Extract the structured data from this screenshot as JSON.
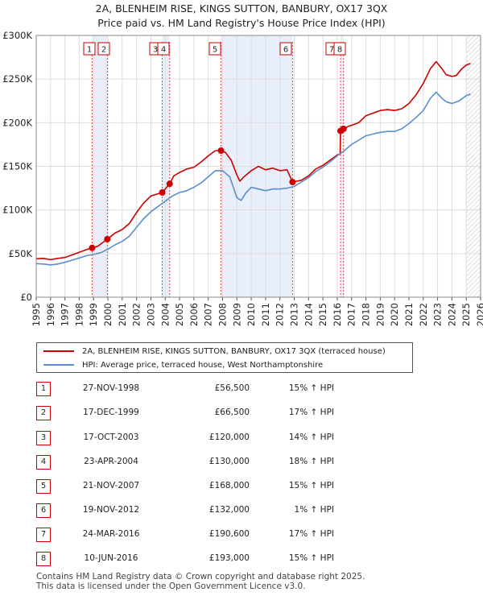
{
  "chart_data": {
    "type": "line",
    "title": "2A, BLENHEIM RISE, KINGS SUTTON, BANBURY, OX17 3QX",
    "subtitle": "Price paid vs. HM Land Registry's House Price Index (HPI)",
    "xlabel": "",
    "ylabel": "",
    "xlim": [
      1995,
      2026
    ],
    "ylim": [
      0,
      300000
    ],
    "y_ticks": [
      {
        "value": 0,
        "label": "£0"
      },
      {
        "value": 50000,
        "label": "£50K"
      },
      {
        "value": 100000,
        "label": "£100K"
      },
      {
        "value": 150000,
        "label": "£150K"
      },
      {
        "value": 200000,
        "label": "£200K"
      },
      {
        "value": 250000,
        "label": "£250K"
      },
      {
        "value": 300000,
        "label": "£300K"
      }
    ],
    "x_ticks": [
      "1995",
      "1996",
      "1997",
      "1998",
      "1999",
      "2000",
      "2001",
      "2002",
      "2003",
      "2004",
      "2005",
      "2006",
      "2007",
      "2008",
      "2009",
      "2010",
      "2011",
      "2012",
      "2013",
      "2014",
      "2015",
      "2016",
      "2017",
      "2018",
      "2019",
      "2020",
      "2021",
      "2022",
      "2023",
      "2024",
      "2025",
      "2026"
    ],
    "grid": true,
    "series": [
      {
        "name": "2A, BLENHEIM RISE, KINGS SUTTON, BANBURY, OX17 3QX (terraced house)",
        "color": "#cc0000",
        "points": [
          [
            1995.0,
            44000
          ],
          [
            1995.5,
            44500
          ],
          [
            1996.0,
            43000
          ],
          [
            1996.5,
            44500
          ],
          [
            1997.0,
            45500
          ],
          [
            1997.5,
            48500
          ],
          [
            1998.0,
            51500
          ],
          [
            1998.5,
            54500
          ],
          [
            1998.9,
            56500
          ],
          [
            1999.3,
            58500
          ],
          [
            1999.96,
            66500
          ],
          [
            2000.5,
            73500
          ],
          [
            2001.0,
            77500
          ],
          [
            2001.5,
            84500
          ],
          [
            2002.0,
            97000
          ],
          [
            2002.5,
            108000
          ],
          [
            2003.0,
            116000
          ],
          [
            2003.79,
            120000
          ],
          [
            2004.31,
            130000
          ],
          [
            2004.6,
            139000
          ],
          [
            2005.0,
            143000
          ],
          [
            2005.5,
            147000
          ],
          [
            2006.0,
            149000
          ],
          [
            2006.5,
            155000
          ],
          [
            2007.0,
            162000
          ],
          [
            2007.5,
            168000
          ],
          [
            2007.89,
            168000
          ],
          [
            2008.2,
            166000
          ],
          [
            2008.6,
            157000
          ],
          [
            2009.0,
            140000
          ],
          [
            2009.2,
            133000
          ],
          [
            2009.5,
            138000
          ],
          [
            2010.0,
            145000
          ],
          [
            2010.5,
            150000
          ],
          [
            2011.0,
            146000
          ],
          [
            2011.5,
            148000
          ],
          [
            2012.0,
            145000
          ],
          [
            2012.5,
            146000
          ],
          [
            2012.88,
            132000
          ],
          [
            2013.2,
            133000
          ],
          [
            2013.5,
            134000
          ],
          [
            2014.0,
            139000
          ],
          [
            2014.5,
            147000
          ],
          [
            2015.0,
            151000
          ],
          [
            2015.5,
            157000
          ],
          [
            2016.0,
            163000
          ],
          [
            2016.2,
            164000
          ],
          [
            2016.23,
            190600
          ],
          [
            2016.44,
            193000
          ],
          [
            2016.8,
            196000
          ],
          [
            2017.0,
            197000
          ],
          [
            2017.5,
            200000
          ],
          [
            2018.0,
            208000
          ],
          [
            2018.5,
            211000
          ],
          [
            2019.0,
            214000
          ],
          [
            2019.5,
            215000
          ],
          [
            2020.0,
            214000
          ],
          [
            2020.5,
            216000
          ],
          [
            2021.0,
            222000
          ],
          [
            2021.5,
            232000
          ],
          [
            2022.0,
            245000
          ],
          [
            2022.5,
            262000
          ],
          [
            2022.9,
            270000
          ],
          [
            2023.3,
            262000
          ],
          [
            2023.6,
            255000
          ],
          [
            2024.0,
            253000
          ],
          [
            2024.3,
            254000
          ],
          [
            2024.7,
            262000
          ],
          [
            2025.0,
            266000
          ],
          [
            2025.3,
            268000
          ]
        ]
      },
      {
        "name": "HPI: Average price, terraced house, West Northamptonshire",
        "color": "#5b8fc9",
        "points": [
          [
            1995.0,
            38500
          ],
          [
            1995.5,
            38000
          ],
          [
            1996.0,
            37000
          ],
          [
            1996.5,
            38000
          ],
          [
            1997.0,
            40000
          ],
          [
            1997.5,
            42500
          ],
          [
            1998.0,
            45000
          ],
          [
            1998.5,
            47500
          ],
          [
            1999.0,
            49000
          ],
          [
            1999.5,
            51000
          ],
          [
            2000.0,
            55000
          ],
          [
            2000.5,
            60000
          ],
          [
            2001.0,
            64000
          ],
          [
            2001.5,
            70000
          ],
          [
            2002.0,
            80000
          ],
          [
            2002.5,
            90000
          ],
          [
            2003.0,
            98000
          ],
          [
            2003.5,
            104000
          ],
          [
            2004.0,
            110000
          ],
          [
            2004.5,
            116000
          ],
          [
            2005.0,
            120000
          ],
          [
            2005.5,
            122000
          ],
          [
            2006.0,
            126000
          ],
          [
            2006.5,
            131000
          ],
          [
            2007.0,
            138000
          ],
          [
            2007.5,
            145000
          ],
          [
            2008.0,
            145000
          ],
          [
            2008.5,
            138000
          ],
          [
            2009.0,
            114000
          ],
          [
            2009.3,
            111000
          ],
          [
            2009.6,
            119000
          ],
          [
            2010.0,
            126000
          ],
          [
            2010.5,
            124000
          ],
          [
            2011.0,
            122000
          ],
          [
            2011.5,
            124000
          ],
          [
            2012.0,
            124000
          ],
          [
            2012.5,
            125000
          ],
          [
            2013.0,
            127000
          ],
          [
            2013.5,
            132000
          ],
          [
            2014.0,
            137000
          ],
          [
            2014.5,
            144000
          ],
          [
            2015.0,
            149000
          ],
          [
            2015.5,
            155000
          ],
          [
            2016.0,
            162000
          ],
          [
            2016.5,
            168000
          ],
          [
            2017.0,
            175000
          ],
          [
            2017.5,
            180000
          ],
          [
            2018.0,
            185000
          ],
          [
            2018.5,
            187000
          ],
          [
            2019.0,
            189000
          ],
          [
            2019.5,
            190000
          ],
          [
            2020.0,
            190000
          ],
          [
            2020.5,
            193000
          ],
          [
            2021.0,
            199000
          ],
          [
            2021.5,
            206000
          ],
          [
            2022.0,
            214000
          ],
          [
            2022.5,
            228000
          ],
          [
            2022.9,
            235000
          ],
          [
            2023.3,
            228000
          ],
          [
            2023.6,
            224000
          ],
          [
            2024.0,
            222000
          ],
          [
            2024.5,
            225000
          ],
          [
            2025.0,
            231000
          ],
          [
            2025.3,
            233000
          ]
        ]
      }
    ],
    "sales": [
      {
        "n": "1",
        "date": "27-NOV-1998",
        "price_label": "£56,500",
        "hpi": "15% ↑ HPI",
        "x": 1998.9,
        "y": 56500
      },
      {
        "n": "2",
        "date": "17-DEC-1999",
        "price_label": "£66,500",
        "hpi": "17% ↑ HPI",
        "x": 1999.96,
        "y": 66500
      },
      {
        "n": "3",
        "date": "17-OCT-2003",
        "price_label": "£120,000",
        "hpi": "14% ↑ HPI",
        "x": 2003.79,
        "y": 120000
      },
      {
        "n": "4",
        "date": "23-APR-2004",
        "price_label": "£130,000",
        "hpi": "18% ↑ HPI",
        "x": 2004.31,
        "y": 130000
      },
      {
        "n": "5",
        "date": "21-NOV-2007",
        "price_label": "£168,000",
        "hpi": "15% ↑ HPI",
        "x": 2007.89,
        "y": 168000
      },
      {
        "n": "6",
        "date": "19-NOV-2012",
        "price_label": "£132,000",
        "hpi": "1% ↑ HPI",
        "x": 2012.88,
        "y": 132000
      },
      {
        "n": "7",
        "date": "24-MAR-2016",
        "price_label": "£190,600",
        "hpi": "17% ↑ HPI",
        "x": 2016.23,
        "y": 190600
      },
      {
        "n": "8",
        "date": "10-JUN-2016",
        "price_label": "£193,000",
        "hpi": "15% ↑ HPI",
        "x": 2016.44,
        "y": 193000
      }
    ],
    "shaded_periods": [
      [
        1998.9,
        1999.96
      ],
      [
        2003.79,
        2004.31
      ],
      [
        2007.89,
        2012.88
      ],
      [
        2016.23,
        2016.44
      ]
    ],
    "forecast_from": 2025.0,
    "colors": {
      "price": "#cc0000",
      "hpi": "#5b8fc9",
      "shade": "#e8eefa",
      "grid": "#dddddd",
      "vline": "#dd4444"
    }
  },
  "legend": {
    "price": "2A, BLENHEIM RISE, KINGS SUTTON, BANBURY, OX17 3QX (terraced house)",
    "hpi": "HPI: Average price, terraced house, West Northamptonshire"
  },
  "footer": {
    "line1": "Contains HM Land Registry data © Crown copyright and database right 2025.",
    "line2": "This data is licensed under the Open Government Licence v3.0."
  }
}
